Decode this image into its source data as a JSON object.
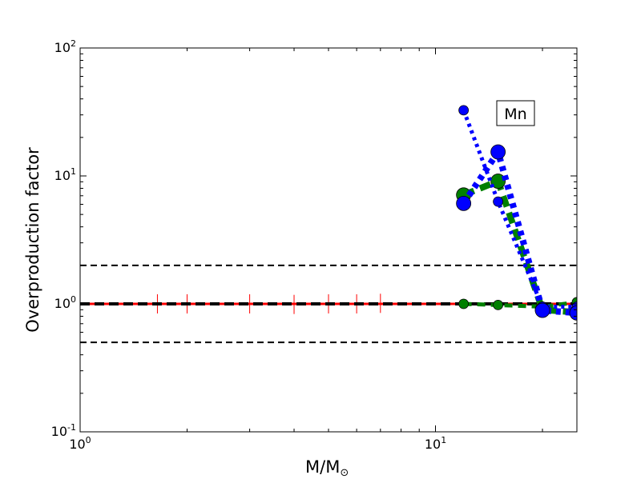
{
  "chart_data": {
    "type": "line",
    "title": "",
    "xlabel": "M/M",
    "xlabel_subscript": "⊙",
    "ylabel": "Overproduction factor",
    "xscale": "log",
    "yscale": "log",
    "xlim": [
      1,
      25
    ],
    "ylim": [
      0.1,
      100
    ],
    "grid": false,
    "annotation": "Mn",
    "x_ticks": [
      {
        "base": "10",
        "exp": "0",
        "value": 1
      },
      {
        "base": "10",
        "exp": "1",
        "value": 10
      }
    ],
    "y_ticks": [
      {
        "base": "10",
        "exp": "-1",
        "value": 0.1
      },
      {
        "base": "10",
        "exp": "0",
        "value": 1
      },
      {
        "base": "10",
        "exp": "1",
        "value": 10
      },
      {
        "base": "10",
        "exp": "2",
        "value": 100
      }
    ],
    "reference_lines": [
      {
        "y": 2.0,
        "color": "#000000",
        "style": "dashed"
      },
      {
        "y": 1.0,
        "color": "#000000",
        "style": "dashed"
      },
      {
        "y": 0.5,
        "color": "#000000",
        "style": "dashed"
      }
    ],
    "series": [
      {
        "color": "#ff0000",
        "marker": "plus",
        "line": "solid",
        "x": [
          1.65,
          2,
          3,
          4,
          5,
          6,
          7
        ],
        "y": [
          1.0,
          1.0,
          1.0,
          0.99,
          1.0,
          1.0,
          1.01
        ]
      },
      {
        "color": "#008000",
        "marker": "circle-small",
        "line": "dashed",
        "x": [
          12,
          15,
          20,
          25
        ],
        "y": [
          1.0,
          0.98,
          0.95,
          1.03
        ]
      },
      {
        "color": "#008000",
        "marker": "circle-large",
        "line": "dashed",
        "x": [
          12,
          15,
          20,
          25
        ],
        "y": [
          7.1,
          9.1,
          0.9,
          0.86
        ]
      },
      {
        "color": "#0000ff",
        "marker": "circle-small",
        "line": "dotted",
        "x": [
          12,
          15,
          20,
          25
        ],
        "y": [
          32.6,
          6.3,
          0.95,
          0.95
        ]
      },
      {
        "color": "#0000ff",
        "marker": "circle-large",
        "line": "dotted",
        "x": [
          12,
          15,
          20,
          25
        ],
        "y": [
          6.1,
          15.4,
          0.89,
          0.85
        ]
      }
    ]
  }
}
